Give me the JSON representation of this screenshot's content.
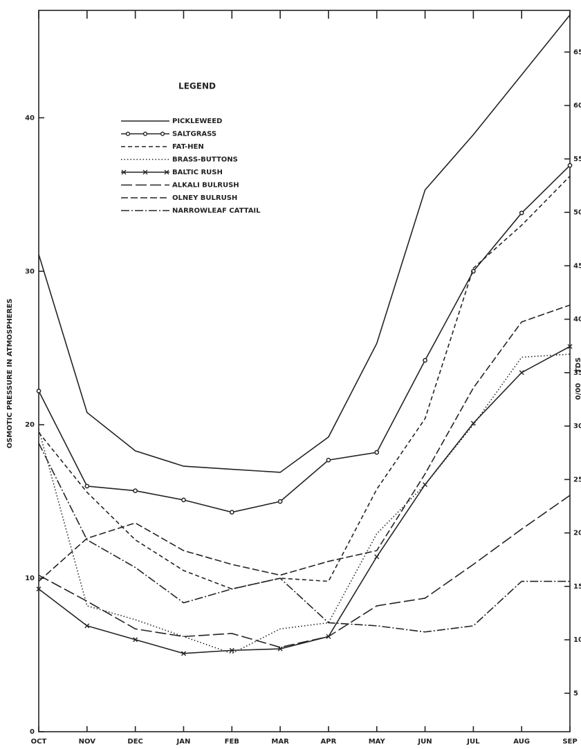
{
  "chart_data": {
    "type": "line",
    "legend_title": "LEGEND",
    "ylabel": "OSMOTIC PRESSURE IN ATMOSPHERES",
    "y2label": "TDS",
    "y2unit": "0/00",
    "categories": [
      "OCT",
      "NOV",
      "DEC",
      "JAN",
      "FEB",
      "MAR",
      "APR",
      "MAY",
      "JUN",
      "JUL",
      "AUG",
      "SEP"
    ],
    "ylim": [
      0,
      47
    ],
    "yticks": [
      0,
      10,
      20,
      30,
      40
    ],
    "y2lim": [
      1.4,
      68.9
    ],
    "y2ticks": [
      5,
      10,
      15,
      20,
      25,
      30,
      35,
      40,
      45,
      50,
      55,
      60,
      65
    ],
    "grid": false,
    "legend": "upper left",
    "series": [
      {
        "name": "PICKLEWEED",
        "color": "#222",
        "dash": "none",
        "marker": "none",
        "values": [
          31.1,
          20.8,
          18.3,
          17.3,
          17.1,
          16.9,
          19.2,
          25.3,
          35.3,
          38.9,
          42.8,
          46.7
        ]
      },
      {
        "name": "SALTGRASS",
        "color": "#222",
        "dash": "none",
        "marker": "o",
        "values": [
          22.2,
          16.0,
          15.7,
          15.1,
          14.3,
          15.0,
          17.7,
          18.2,
          24.2,
          30.0,
          33.8,
          36.9
        ]
      },
      {
        "name": "FAT-HEN",
        "color": "#222",
        "dash": "6 4",
        "marker": "none",
        "values": [
          19.5,
          15.6,
          12.5,
          10.5,
          9.3,
          10.0,
          9.8,
          15.8,
          20.4,
          30.2,
          33.0,
          36.2
        ]
      },
      {
        "name": "BRASS-BUTTONS",
        "color": "#222",
        "dash": "1.5 3",
        "marker": "none",
        "values": [
          19.7,
          8.2,
          7.3,
          6.2,
          5.1,
          6.7,
          7.1,
          12.9,
          16.1,
          20.0,
          24.4,
          24.6
        ]
      },
      {
        "name": "BALTIC RUSH",
        "color": "#222",
        "dash": "none",
        "marker": "x",
        "values": [
          9.3,
          6.9,
          6.0,
          5.1,
          5.3,
          5.4,
          6.2,
          11.4,
          16.1,
          20.1,
          23.4,
          25.1
        ]
      },
      {
        "name": "ALKALI BULRUSH",
        "color": "#222",
        "dash": "16 5",
        "marker": "none",
        "values": [
          10.2,
          8.5,
          6.7,
          6.2,
          6.4,
          5.5,
          6.2,
          8.2,
          8.7,
          10.9,
          13.2,
          15.4
        ]
      },
      {
        "name": "OLNEY BULRUSH",
        "color": "#222",
        "dash": "10 4",
        "marker": "none",
        "values": [
          9.8,
          12.6,
          13.6,
          11.8,
          10.9,
          10.2,
          11.1,
          11.8,
          16.8,
          22.4,
          26.7,
          27.8
        ]
      },
      {
        "name": "NARROWLEAF CATTAIL",
        "color": "#222",
        "dash": "12 3 2 3",
        "marker": "none",
        "values": [
          18.8,
          12.5,
          10.7,
          8.4,
          9.3,
          10.0,
          7.1,
          6.9,
          6.5,
          6.9,
          9.8,
          9.8
        ]
      }
    ]
  }
}
